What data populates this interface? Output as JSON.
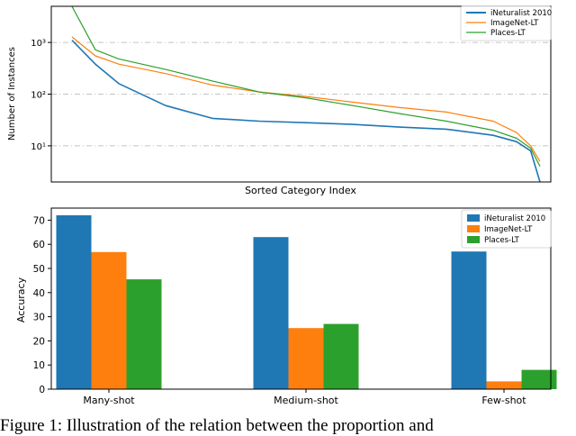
{
  "figure_caption": "Figure 1: Illustration of the relation between the proportion and",
  "colors": {
    "inat": "#1f77b4",
    "imagenet": "#ff7f0e",
    "places": "#2ca02c",
    "gridline": "#b0b0b0"
  },
  "chart_data": [
    {
      "type": "line",
      "title": "",
      "xlabel": "Sorted Category Index",
      "ylabel": "Number of Instances",
      "yscale": "log",
      "ylim": [
        2,
        5000
      ],
      "y_ticks": [
        10,
        100,
        1000
      ],
      "y_tick_labels": [
        "10¹",
        "10²",
        "10³"
      ],
      "x_ticks_visible": false,
      "grid": "horizontal dash-dot",
      "legend_position": "top-right",
      "x": [
        0,
        0.05,
        0.1,
        0.2,
        0.3,
        0.4,
        0.5,
        0.6,
        0.7,
        0.8,
        0.9,
        0.95,
        0.98,
        1.0
      ],
      "series": [
        {
          "name": "iNeturalist 2010",
          "color_key": "inat",
          "values": [
            1100,
            380,
            160,
            60,
            34,
            30,
            28,
            26,
            23,
            21,
            16,
            12,
            8,
            2
          ]
        },
        {
          "name": "ImageNet-LT",
          "color_key": "imagenet",
          "values": [
            1280,
            550,
            380,
            250,
            150,
            110,
            90,
            70,
            55,
            45,
            30,
            18,
            10,
            5
          ]
        },
        {
          "name": "Places-LT",
          "color_key": "places",
          "values": [
            4980,
            720,
            480,
            300,
            180,
            110,
            85,
            60,
            42,
            30,
            20,
            14,
            9,
            4
          ]
        }
      ]
    },
    {
      "type": "bar",
      "title": "",
      "xlabel": "",
      "ylabel": "Accuracy",
      "ylim": [
        0,
        75
      ],
      "y_ticks": [
        0,
        10,
        20,
        30,
        40,
        50,
        60,
        70
      ],
      "grid": "off",
      "legend_position": "top-right",
      "categories": [
        "Many-shot",
        "Medium-shot",
        "Few-shot"
      ],
      "series": [
        {
          "name": "iNeturalist 2010",
          "color_key": "inat",
          "values": [
            72.0,
            63.0,
            57.0
          ]
        },
        {
          "name": "ImageNet-LT",
          "color_key": "imagenet",
          "values": [
            56.8,
            25.3,
            3.2
          ]
        },
        {
          "name": "Places-LT",
          "color_key": "places",
          "values": [
            45.5,
            27.0,
            8.0
          ]
        }
      ]
    }
  ]
}
